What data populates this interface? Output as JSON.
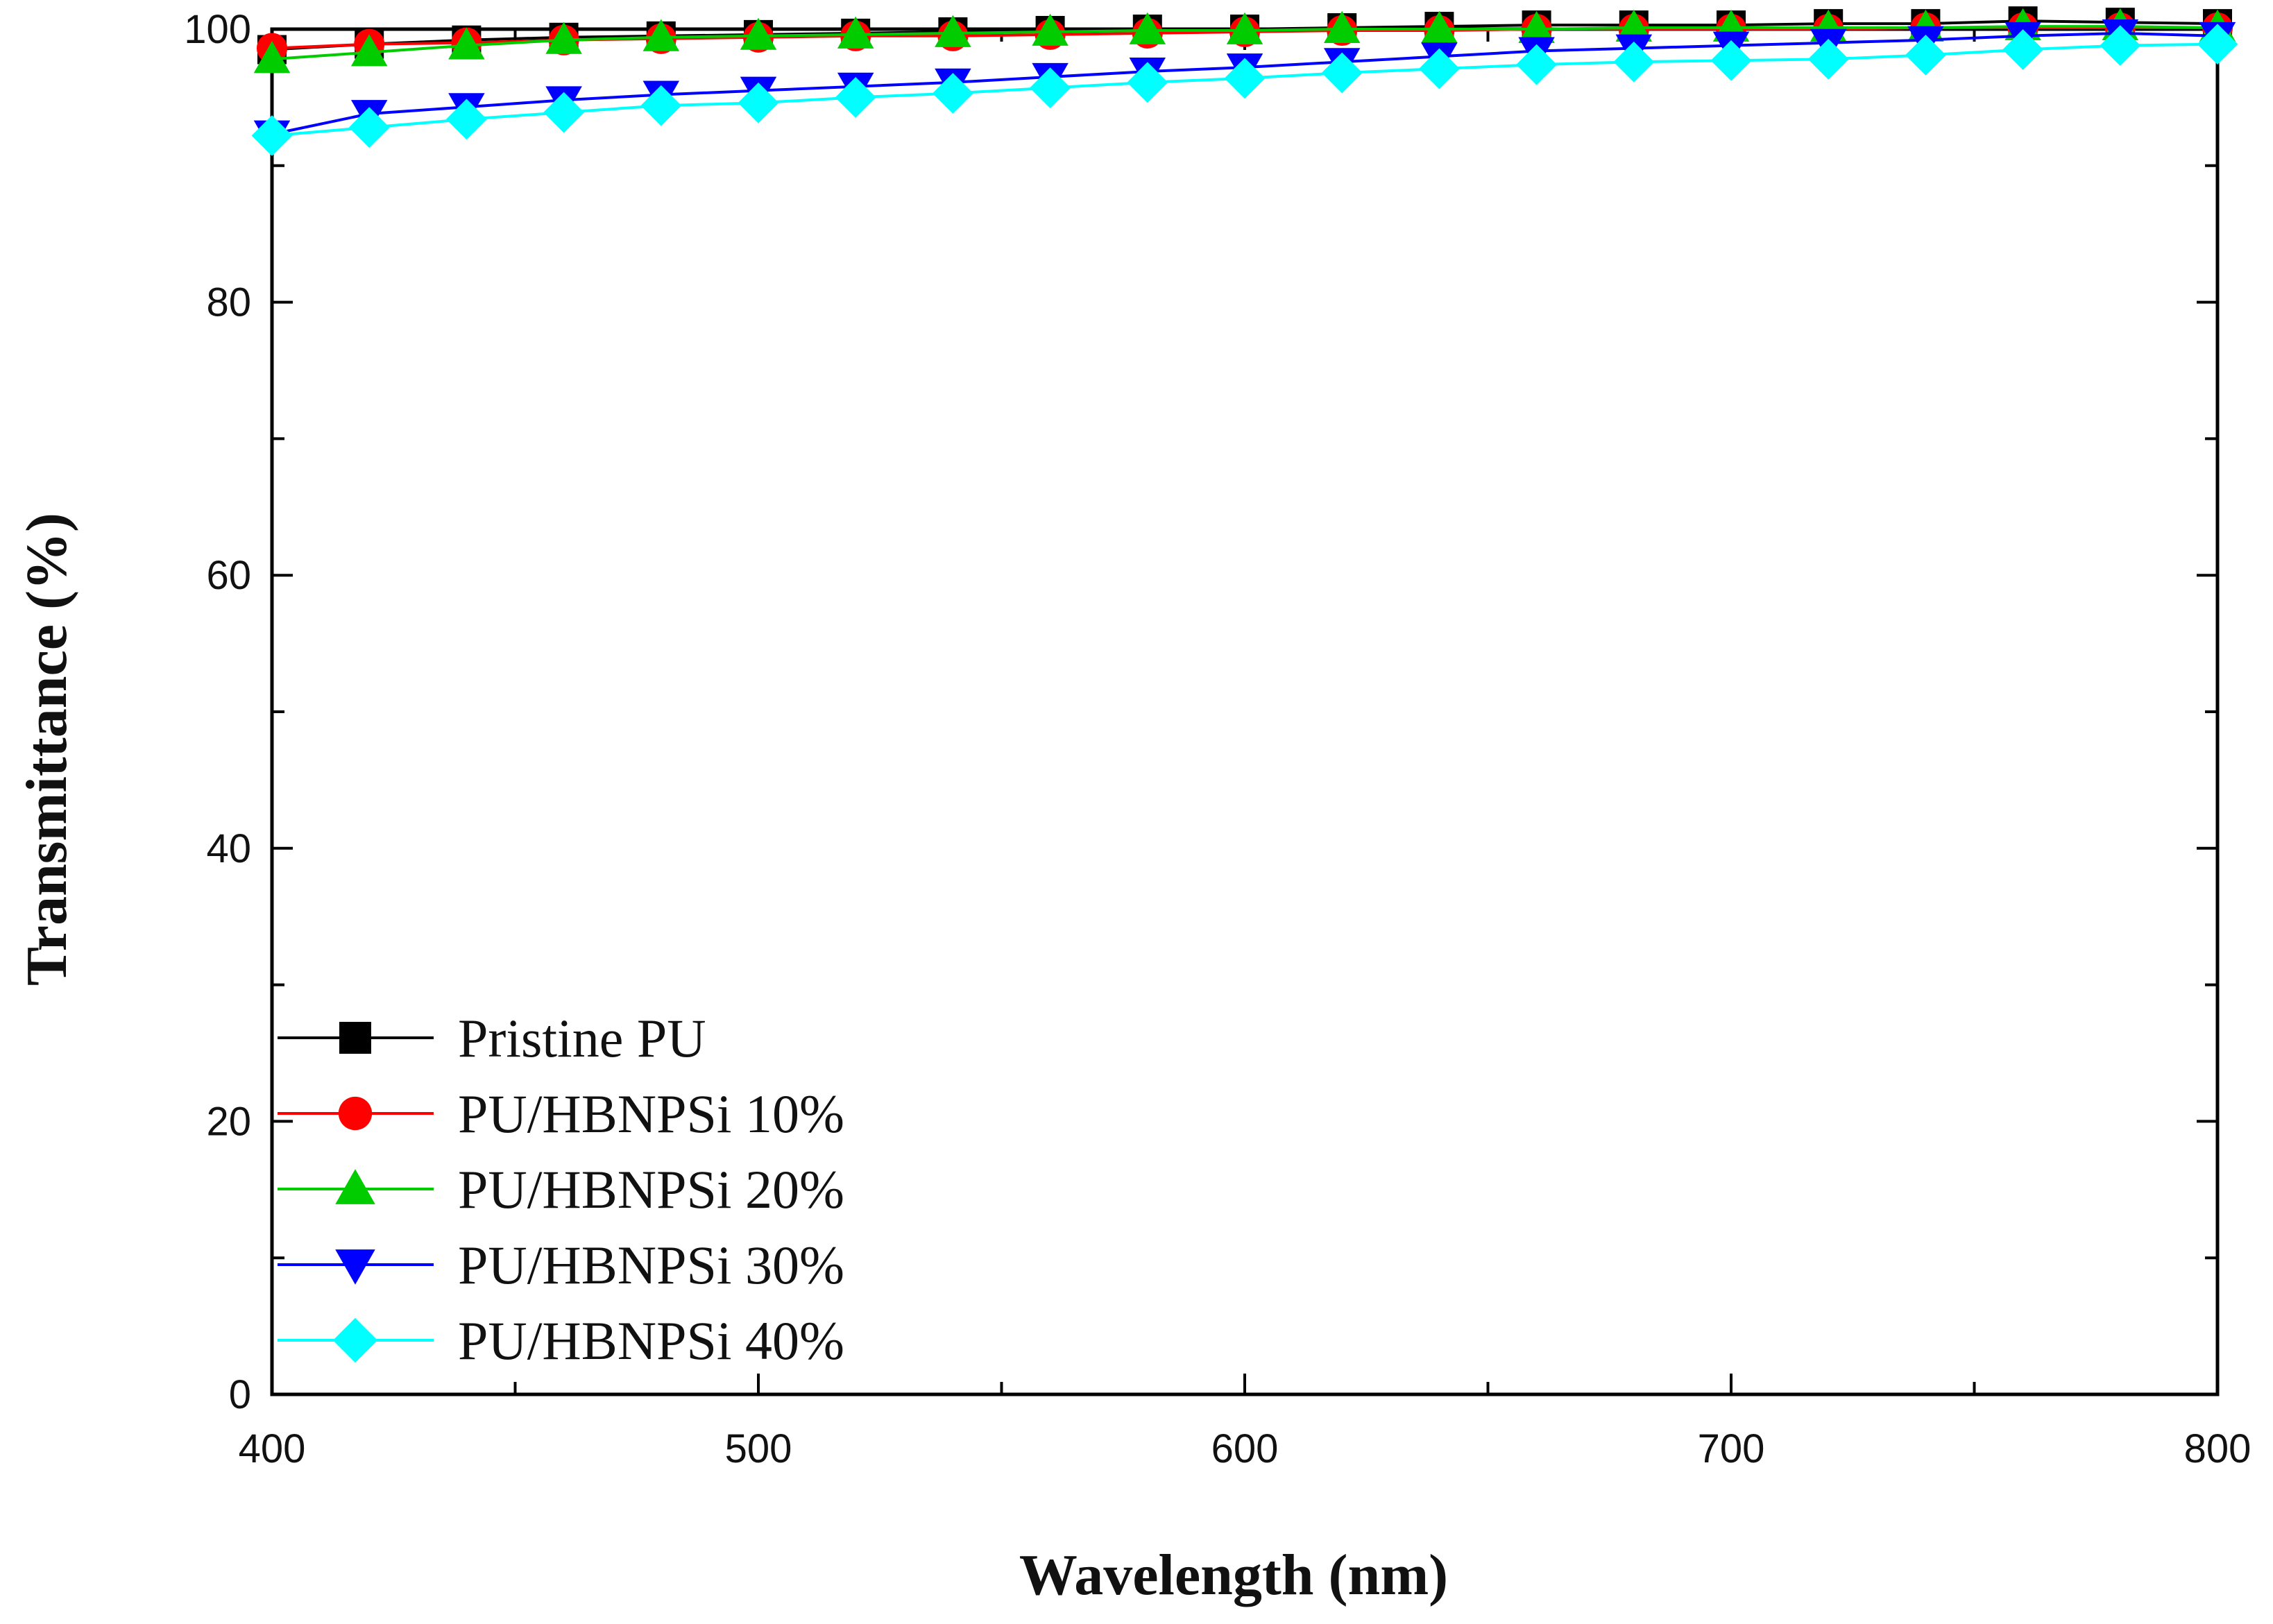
{
  "chart_data": {
    "type": "line",
    "title": "",
    "xlabel": "Wavelength (nm)",
    "ylabel": "Transmittance (%)",
    "xlim": [
      400,
      800
    ],
    "ylim": [
      0,
      100
    ],
    "xticks": [
      400,
      500,
      600,
      700,
      800
    ],
    "xtick_labels": [
      "400",
      "500",
      "600",
      "700",
      "800"
    ],
    "yticks": [
      0,
      20,
      40,
      60,
      80,
      100
    ],
    "ytick_labels": [
      "0",
      "20",
      "40",
      "60",
      "80",
      "100"
    ],
    "grid": false,
    "legend_position": "bottom-left",
    "x": [
      400,
      420,
      440,
      460,
      480,
      500,
      520,
      540,
      560,
      580,
      600,
      620,
      640,
      660,
      680,
      700,
      720,
      740,
      760,
      780,
      800
    ],
    "series": [
      {
        "name": "Pristine PU",
        "color": "#000000",
        "marker": "square",
        "values": [
          98.5,
          98.9,
          99.2,
          99.4,
          99.5,
          99.6,
          99.7,
          99.8,
          99.9,
          100.0,
          100.0,
          100.1,
          100.2,
          100.3,
          100.3,
          100.3,
          100.4,
          100.4,
          100.6,
          100.5,
          100.4
        ]
      },
      {
        "name": "PU/HBNPSi 10%",
        "color": "#ff0000",
        "marker": "circle",
        "values": [
          98.6,
          98.9,
          99.0,
          99.2,
          99.3,
          99.4,
          99.5,
          99.5,
          99.6,
          99.7,
          99.8,
          99.9,
          99.9,
          100.0,
          100.0,
          100.0,
          100.0,
          100.1,
          100.1,
          100.1,
          100.1
        ]
      },
      {
        "name": "PU/HBNPSi 20%",
        "color": "#00cc00",
        "marker": "triangle-up",
        "values": [
          97.8,
          98.3,
          98.8,
          99.2,
          99.4,
          99.5,
          99.6,
          99.7,
          99.8,
          99.9,
          99.9,
          100.0,
          100.0,
          100.0,
          100.1,
          100.1,
          100.1,
          100.1,
          100.2,
          100.2,
          100.1
        ]
      },
      {
        "name": "PU/HBNPSi 30%",
        "color": "#0000ff",
        "marker": "triangle-down",
        "values": [
          92.3,
          93.8,
          94.3,
          94.8,
          95.2,
          95.5,
          95.8,
          96.1,
          96.5,
          96.9,
          97.2,
          97.6,
          98.0,
          98.4,
          98.6,
          98.8,
          99.0,
          99.2,
          99.5,
          99.7,
          99.5
        ]
      },
      {
        "name": "PU/HBNPSi 40%",
        "color": "#00ffff",
        "marker": "diamond",
        "values": [
          92.2,
          92.8,
          93.4,
          93.9,
          94.4,
          94.6,
          95.0,
          95.3,
          95.7,
          96.1,
          96.4,
          96.8,
          97.1,
          97.4,
          97.6,
          97.7,
          97.8,
          98.1,
          98.5,
          98.8,
          98.9
        ]
      }
    ]
  }
}
